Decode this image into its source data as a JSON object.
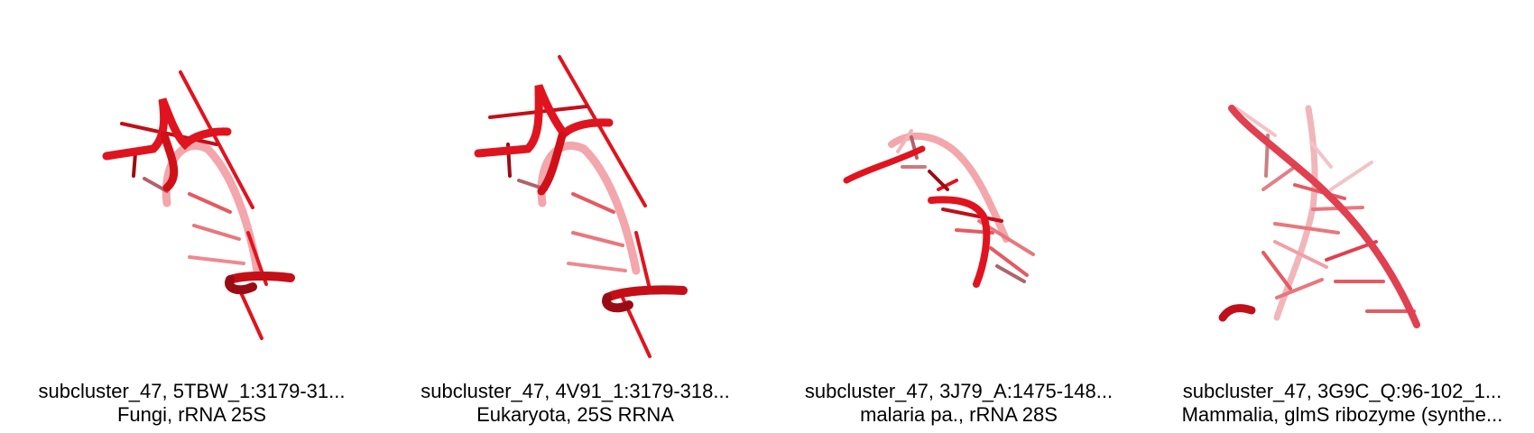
{
  "panels": [
    {
      "line1": "subcluster_47, 5TBW_1:3179-31...",
      "line2": "Fungi, rRNA 25S",
      "color": "#e0141e"
    },
    {
      "line1": "subcluster_47, 4V91_1:3179-318...",
      "line2": "Eukaryota, 25S RRNA",
      "color": "#e0141e"
    },
    {
      "line1": "subcluster_47, 3J79_A:1475-148...",
      "line2": "malaria pa., rRNA 28S",
      "color": "#e0141e"
    },
    {
      "line1": "subcluster_47, 3G9C_Q:96-102_1...",
      "line2": "Mammalia, glmS ribozyme (synthe...",
      "color": "#e04050"
    }
  ]
}
